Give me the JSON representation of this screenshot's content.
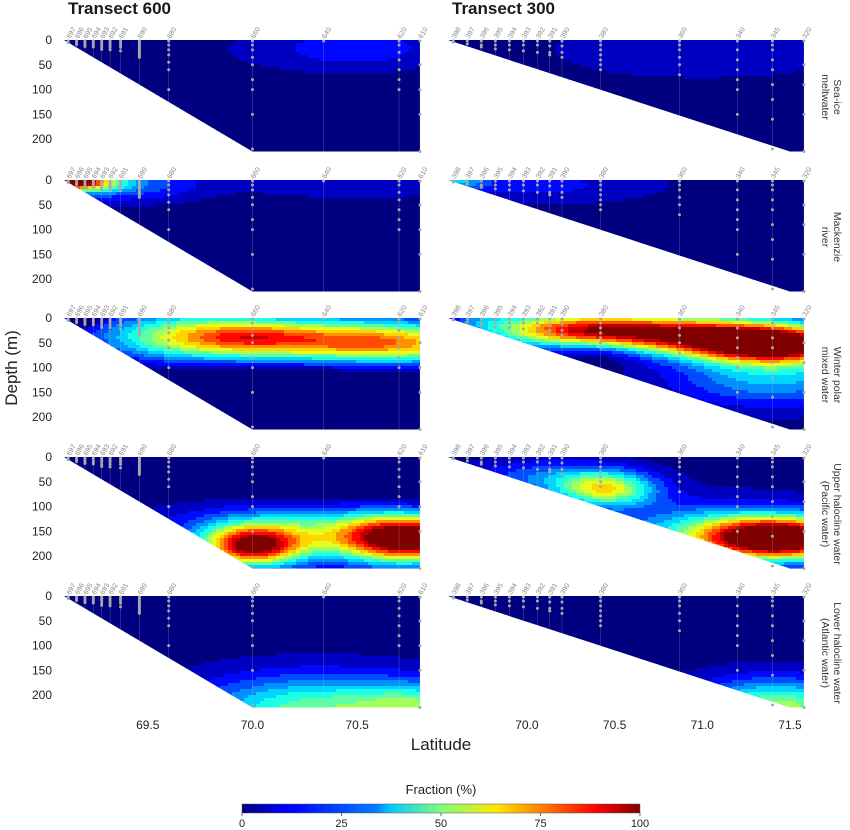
{
  "chart_data": {
    "type": "heatmap",
    "subtype": "filled-contour sections",
    "transects": [
      {
        "title": "Transect 600",
        "xlim": [
          69.1,
          70.8
        ],
        "xticks": [
          69.5,
          70.0,
          70.5
        ],
        "xtick_labels": [
          "69.5",
          "70.0",
          "70.5"
        ],
        "bottom_profile": [
          [
            69.1,
            0
          ],
          [
            70.0,
            225
          ],
          [
            70.8,
            225
          ]
        ],
        "stations": [
          {
            "label": "697",
            "lat": 69.12,
            "depths": [
              2,
              5
            ]
          },
          {
            "label": "696",
            "lat": 69.16,
            "depths": [
              2,
              6,
              9
            ]
          },
          {
            "label": "695",
            "lat": 69.2,
            "depths": [
              2,
              6,
              10,
              13
            ]
          },
          {
            "label": "694",
            "lat": 69.24,
            "depths": [
              2,
              6,
              10,
              14
            ]
          },
          {
            "label": "693",
            "lat": 69.28,
            "depths": [
              2,
              6,
              10,
              15,
              19
            ]
          },
          {
            "label": "692",
            "lat": 69.32,
            "depths": [
              2,
              6,
              10,
              15,
              20
            ]
          },
          {
            "label": "691",
            "lat": 69.37,
            "depths": [
              2,
              6,
              10,
              15,
              22
            ]
          },
          {
            "label": "690",
            "lat": 69.46,
            "depths": [
              2,
              5,
              8,
              11,
              14,
              17,
              20,
              23,
              26,
              29,
              32,
              35
            ]
          },
          {
            "label": "680",
            "lat": 69.6,
            "depths": [
              2,
              10,
              20,
              30,
              45,
              60,
              100
            ]
          },
          {
            "label": "660",
            "lat": 70.0,
            "depths": [
              2,
              10,
              20,
              35,
              50,
              80,
              100,
              150,
              220
            ]
          },
          {
            "label": "640",
            "lat": 70.34,
            "depths": [
              2
            ]
          },
          {
            "label": "620",
            "lat": 70.7,
            "depths": [
              2,
              10,
              25,
              40,
              60,
              80,
              100
            ]
          },
          {
            "label": "610",
            "lat": 70.8,
            "depths": [
              2,
              50,
              100,
              150,
              225
            ]
          }
        ]
      },
      {
        "title": "Transect 300",
        "xlim": [
          69.55,
          71.58
        ],
        "xticks": [
          70.0,
          70.5,
          71.0,
          71.5
        ],
        "xtick_labels": [
          "70.0",
          "70.5",
          "71.0",
          "71.5"
        ],
        "bottom_profile": [
          [
            69.55,
            0
          ],
          [
            71.5,
            225
          ],
          [
            71.58,
            225
          ]
        ],
        "stations": [
          {
            "label": "398",
            "lat": 69.58,
            "depths": [
              2,
              4
            ]
          },
          {
            "label": "397",
            "lat": 69.66,
            "depths": [
              2,
              8
            ]
          },
          {
            "label": "396",
            "lat": 69.74,
            "depths": [
              2,
              10,
              14
            ]
          },
          {
            "label": "395",
            "lat": 69.82,
            "depths": [
              2,
              10,
              18
            ]
          },
          {
            "label": "394",
            "lat": 69.9,
            "depths": [
              2,
              10,
              20
            ]
          },
          {
            "label": "393",
            "lat": 69.98,
            "depths": [
              2,
              10,
              22
            ]
          },
          {
            "label": "392",
            "lat": 70.06,
            "depths": [
              2,
              10,
              25
            ]
          },
          {
            "label": "391",
            "lat": 70.13,
            "depths": [
              2,
              12,
              25,
              30
            ]
          },
          {
            "label": "390",
            "lat": 70.2,
            "depths": [
              2,
              12,
              25,
              35
            ]
          },
          {
            "label": "380",
            "lat": 70.42,
            "depths": [
              2,
              10,
              20,
              30,
              40,
              50,
              60
            ]
          },
          {
            "label": "360",
            "lat": 70.87,
            "depths": [
              2,
              10,
              20,
              35,
              50,
              70
            ]
          },
          {
            "label": "340",
            "lat": 71.2,
            "depths": [
              2,
              20,
              40,
              60,
              80,
              100,
              150
            ]
          },
          {
            "label": "345",
            "lat": 71.4,
            "depths": [
              2,
              10,
              20,
              40,
              60,
              90,
              120,
              160,
              220
            ]
          },
          {
            "label": "320",
            "lat": 71.58,
            "depths": [
              2,
              50,
              90,
              150,
              225
            ]
          }
        ]
      }
    ],
    "rows": [
      {
        "name": "Sea-ice meltwater",
        "label_lines": [
          "Sea-ice",
          "meltwater"
        ]
      },
      {
        "name": "Mackenzie river",
        "label_lines": [
          "Mackenzie",
          "river"
        ]
      },
      {
        "name": "Winter polar mixed water",
        "label_lines": [
          "Winter polar",
          "mixed water"
        ]
      },
      {
        "name": "Upper halocline water (Pacific water)",
        "label_lines": [
          "Upper halocline water",
          "(Pacific water)"
        ]
      },
      {
        "name": "Lower halocline water (Atlantic water)",
        "label_lines": [
          "Lower halocline water",
          "(Atlantic water)"
        ]
      }
    ],
    "fields": [
      [
        {
          "base": 3,
          "blobs": [
            [
              70.55,
              15,
              0.25,
              30,
              12
            ],
            [
              70.2,
              20,
              0.3,
              30,
              5
            ]
          ]
        },
        {
          "base": 4,
          "blobs": [
            [
              71.0,
              20,
              0.6,
              40,
              6
            ]
          ]
        }
      ],
      [
        {
          "base": 2,
          "blobs": [
            [
              69.12,
              2,
              0.07,
              8,
              95
            ],
            [
              69.2,
              5,
              0.12,
              14,
              55
            ],
            [
              69.4,
              8,
              0.25,
              25,
              22
            ],
            [
              70.5,
              10,
              0.4,
              20,
              10
            ]
          ]
        },
        {
          "base": 3,
          "blobs": [
            [
              69.6,
              4,
              0.12,
              10,
              22
            ],
            [
              70.0,
              10,
              0.5,
              25,
              12
            ]
          ]
        }
      ],
      [
        {
          "base": 3,
          "blobs": [
            [
              69.15,
              2,
              0.07,
              10,
              -45
            ],
            [
              70.0,
              35,
              0.16,
              18,
              12
            ],
            [
              70.8,
              65,
              0.3,
              25,
              18
            ],
            [
              70.4,
              45,
              0.5,
              30,
              70
            ],
            [
              69.7,
              35,
              0.3,
              35,
              40
            ],
            [
              70.2,
              185,
              0.6,
              50,
              -30
            ]
          ]
        },
        {
          "base": 3,
          "blobs": [
            [
              71.4,
              55,
              0.35,
              25,
              100
            ],
            [
              70.8,
              30,
              0.5,
              25,
              80
            ],
            [
              70.2,
              20,
              0.35,
              22,
              45
            ],
            [
              70.4,
              70,
              0.15,
              20,
              -10
            ],
            [
              71.4,
              120,
              0.4,
              40,
              30
            ],
            [
              69.75,
              5,
              0.12,
              10,
              10
            ]
          ]
        }
      ],
      [
        {
          "base": 3,
          "blobs": [
            [
              70.0,
              180,
              0.16,
              28,
              80
            ],
            [
              70.75,
              165,
              0.22,
              32,
              95
            ],
            [
              70.3,
              150,
              0.45,
              40,
              40
            ],
            [
              70.6,
              60,
              0.55,
              50,
              -10
            ]
          ]
        },
        {
          "base": 3,
          "blobs": [
            [
              71.45,
              165,
              0.3,
              28,
              105
            ],
            [
              71.1,
              150,
              0.45,
              40,
              35
            ],
            [
              70.45,
              65,
              0.2,
              25,
              55
            ],
            [
              70.1,
              40,
              0.3,
              25,
              20
            ]
          ]
        }
      ],
      [
        {
          "base": 3,
          "blobs": [
            [
              70.3,
              230,
              0.4,
              50,
              45
            ],
            [
              70.8,
              225,
              0.2,
              35,
              30
            ]
          ]
        },
        {
          "base": 3,
          "blobs": [
            [
              71.5,
              230,
              0.3,
              40,
              40
            ],
            [
              71.25,
              215,
              0.3,
              40,
              15
            ]
          ]
        }
      ]
    ],
    "ylim": [
      0,
      230
    ],
    "yticks": [
      0,
      50,
      100,
      150,
      200
    ],
    "ylabel": "Depth (m)",
    "xlabel": "Latitude",
    "colorbar": {
      "title": "Fraction (%)",
      "min": 0,
      "max": 100,
      "ticks": [
        0,
        25,
        50,
        75,
        100
      ],
      "colormap": "jet"
    }
  }
}
